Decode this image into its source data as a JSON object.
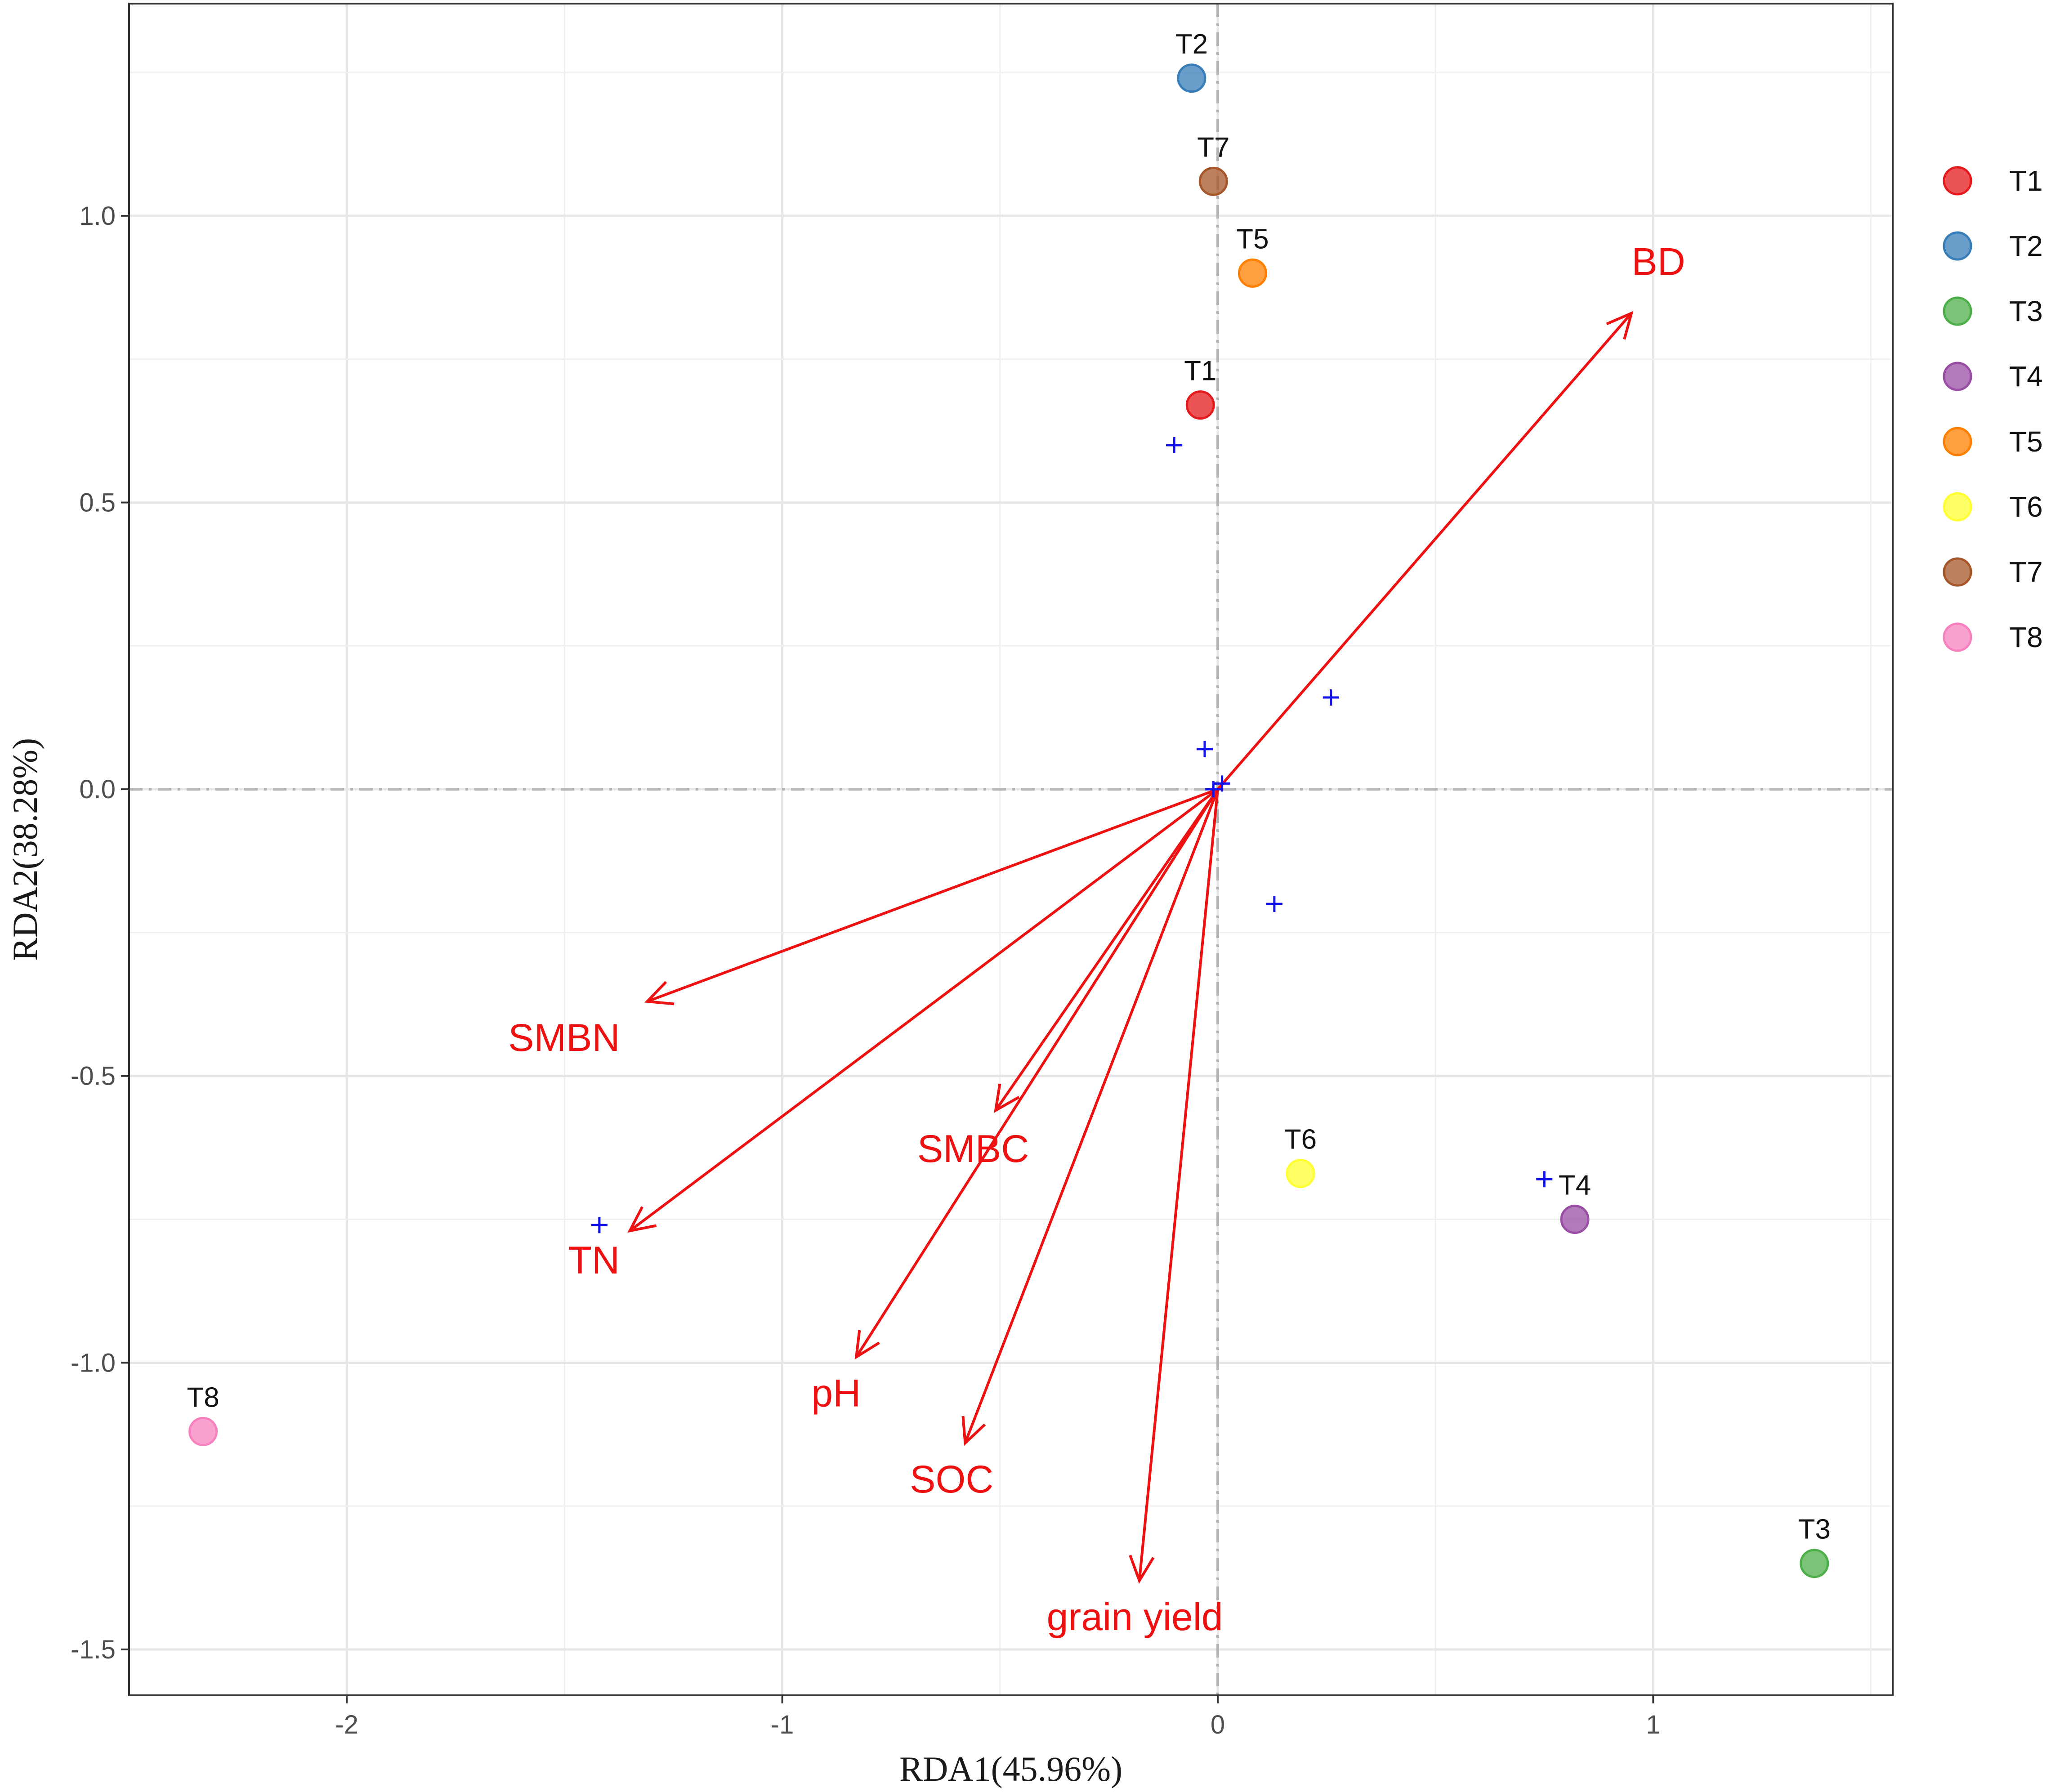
{
  "chart_data": {
    "type": "scatter",
    "subtype": "rda-biplot",
    "xlabel": "RDA1(45.96%)",
    "ylabel": "RDA2(38.28%)",
    "xlim": [
      -2.5,
      1.55
    ],
    "ylim": [
      -1.58,
      1.37
    ],
    "x_ticks": [
      -2,
      -1,
      0,
      1
    ],
    "x_tick_labels": [
      "-2",
      "-1",
      "0",
      "1"
    ],
    "y_ticks": [
      -1.5,
      -1.0,
      -0.5,
      0.0,
      0.5,
      1.0
    ],
    "y_tick_labels": [
      "-1.5",
      "-1.0",
      "-0.5",
      "0.0",
      "0.5",
      "1.0"
    ],
    "grid": true,
    "legend_position": "right",
    "samples": [
      {
        "name": "T1",
        "x": -0.04,
        "y": 0.67,
        "color": "#e41a1c"
      },
      {
        "name": "T2",
        "x": -0.06,
        "y": 1.24,
        "color": "#377eb8"
      },
      {
        "name": "T3",
        "x": 1.37,
        "y": -1.35,
        "color": "#4daf4a"
      },
      {
        "name": "T4",
        "x": 0.82,
        "y": -0.75,
        "color": "#984ea3"
      },
      {
        "name": "T5",
        "x": 0.08,
        "y": 0.9,
        "color": "#ff7f00"
      },
      {
        "name": "T6",
        "x": 0.19,
        "y": -0.67,
        "color": "#ffff33"
      },
      {
        "name": "T7",
        "x": -0.01,
        "y": 1.06,
        "color": "#a65628"
      },
      {
        "name": "T8",
        "x": -2.33,
        "y": -1.12,
        "color": "#f781bf"
      }
    ],
    "species": [
      {
        "x": -0.1,
        "y": 0.6
      },
      {
        "x": 0.26,
        "y": 0.16
      },
      {
        "x": -0.03,
        "y": 0.07
      },
      {
        "x": 0.01,
        "y": 0.01
      },
      {
        "x": -0.01,
        "y": 0.0
      },
      {
        "x": 0.13,
        "y": -0.2
      },
      {
        "x": 0.75,
        "y": -0.68
      },
      {
        "x": -1.42,
        "y": -0.76
      }
    ],
    "environment_vectors": [
      {
        "name": "BD",
        "x": 0.95,
        "y": 0.83
      },
      {
        "name": "SMBN",
        "x": -1.31,
        "y": -0.37
      },
      {
        "name": "SMBC",
        "x": -0.51,
        "y": -0.56
      },
      {
        "name": "TN",
        "x": -1.35,
        "y": -0.77
      },
      {
        "name": "pH",
        "x": -0.83,
        "y": -0.99
      },
      {
        "name": "SOC",
        "x": -0.58,
        "y": -1.14
      },
      {
        "name": "grain yield",
        "x": -0.18,
        "y": -1.38
      }
    ],
    "colors": {
      "vectors": "#ee1111",
      "species": "#1111ee",
      "zero_lines": "#b3b3b3"
    }
  }
}
